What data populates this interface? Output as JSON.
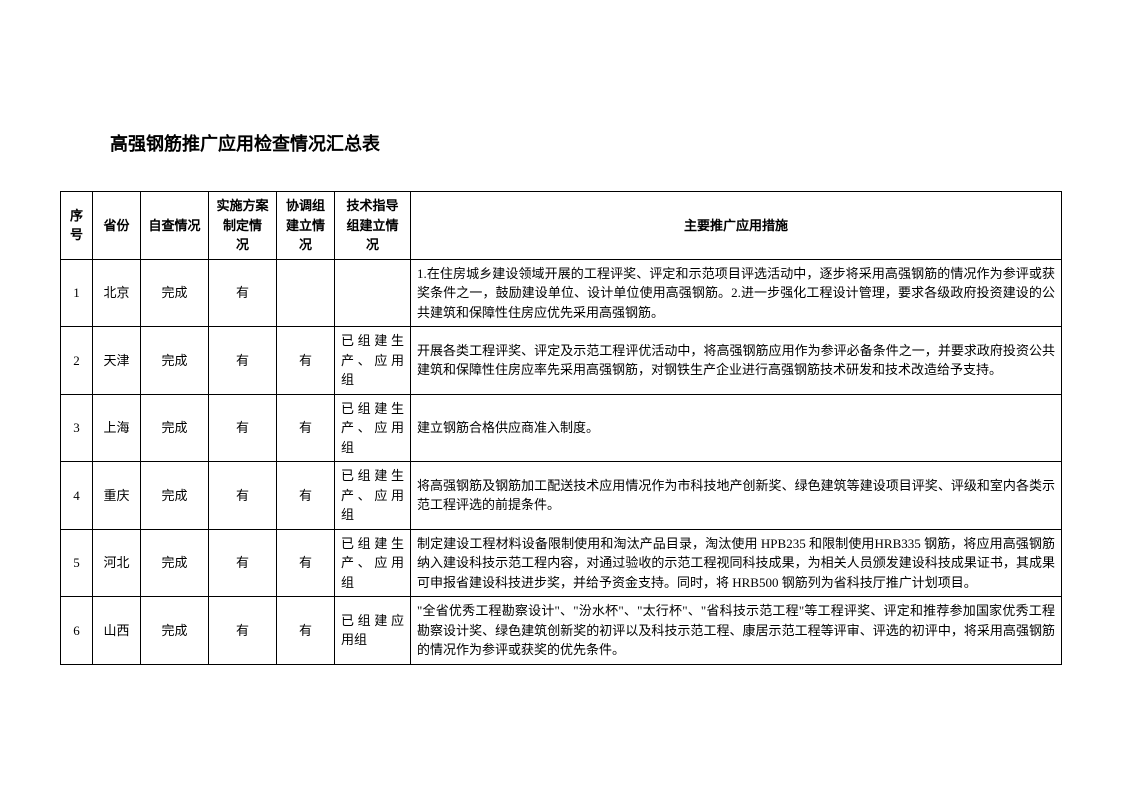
{
  "title": "高强钢筋推广应用检查情况汇总表",
  "headers": {
    "seq": "序号",
    "province": "省份",
    "self_check": "自查情况",
    "plan": "实施方案制定情　况",
    "coord": "协调组建立情况",
    "tech": "技术指导组建立情况",
    "measure": "主要推广应用措施"
  },
  "rows": [
    {
      "seq": "1",
      "province": "北京",
      "self_check": "完成",
      "plan": "有",
      "coord": "",
      "tech": "",
      "measure": "1.在住房城乡建设领域开展的工程评奖、评定和示范项目评选活动中，逐步将采用高强钢筋的情况作为参评或获奖条件之一，鼓励建设单位、设计单位使用高强钢筋。2.进一步强化工程设计管理，要求各级政府投资建设的公共建筑和保障性住房应优先采用高强钢筋。"
    },
    {
      "seq": "2",
      "province": "天津",
      "self_check": "完成",
      "plan": "有",
      "coord": "有",
      "tech": "已组建生产、应用组",
      "measure": "开展各类工程评奖、评定及示范工程评优活动中，将高强钢筋应用作为参评必备条件之一，并要求政府投资公共建筑和保障性住房应率先采用高强钢筋，对钢铁生产企业进行高强钢筋技术研发和技术改造给予支持。"
    },
    {
      "seq": "3",
      "province": "上海",
      "self_check": "完成",
      "plan": "有",
      "coord": "有",
      "tech": "已组建生产、应用组",
      "measure": "建立钢筋合格供应商准入制度。"
    },
    {
      "seq": "4",
      "province": "重庆",
      "self_check": "完成",
      "plan": "有",
      "coord": "有",
      "tech": "已组建生产、应用组",
      "measure": "将高强钢筋及钢筋加工配送技术应用情况作为市科技地产创新奖、绿色建筑等建设项目评奖、评级和室内各类示范工程评选的前提条件。"
    },
    {
      "seq": "5",
      "province": "河北",
      "self_check": "完成",
      "plan": "有",
      "coord": "有",
      "tech": "已组建生产、应用组",
      "measure": "制定建设工程材料设备限制使用和淘汰产品目录，淘汰使用 HPB235 和限制使用HRB335 钢筋，将应用高强钢筋纳入建设科技示范工程内容，对通过验收的示范工程视同科技成果，为相关人员颁发建设科技成果证书，其成果可申报省建设科技进步奖，并给予资金支持。同时，将 HRB500 钢筋列为省科技厅推广计划项目。"
    },
    {
      "seq": "6",
      "province": "山西",
      "self_check": "完成",
      "plan": "有",
      "coord": "有",
      "tech": "已组建应用组",
      "measure": "\"全省优秀工程勘察设计\"、\"汾水杯\"、\"太行杯\"、\"省科技示范工程\"等工程评奖、评定和推荐参加国家优秀工程勘察设计奖、绿色建筑创新奖的初评以及科技示范工程、康居示范工程等评审、评选的初评中，将采用高强钢筋的情况作为参评或获奖的优先条件。"
    }
  ]
}
